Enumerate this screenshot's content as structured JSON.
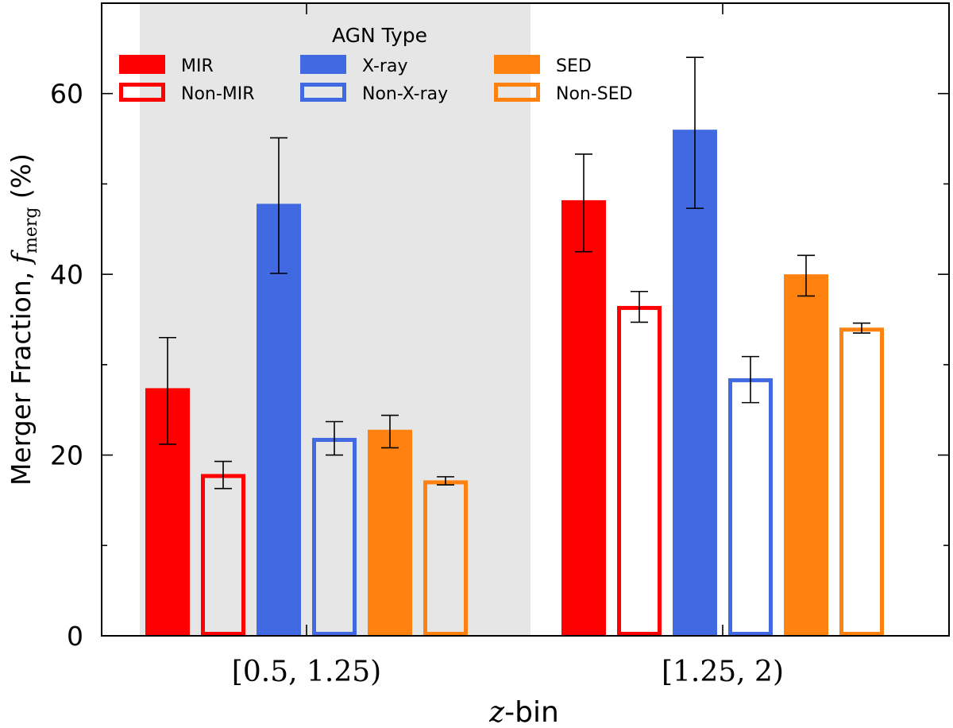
{
  "chart_data": {
    "type": "bar",
    "title": "",
    "xlabel_var": "z",
    "xlabel_suffix": "-bin",
    "ylabel_text": "Merger Fraction,",
    "ylabel_sym": "f",
    "ylabel_sub": "merg",
    "ylabel_unit": "(%)",
    "ylim": [
      0,
      70
    ],
    "yticks": [
      "0",
      "20",
      "40",
      "60"
    ],
    "categories": [
      "[0.5, 1.25)",
      "[1.25, 2)"
    ],
    "shaded_category": "[0.5, 1.25)",
    "legend": {
      "title": "AGN Type",
      "placement": "top"
    },
    "series": [
      {
        "name": "MIR",
        "style": "filled",
        "color": "#ff0000",
        "values": [
          27.4,
          48.2
        ],
        "err_low": [
          21.2,
          42.5
        ],
        "err_high": [
          33.0,
          53.3
        ]
      },
      {
        "name": "Non-MIR",
        "style": "hollow",
        "color": "#ff0000",
        "values": [
          17.9,
          36.5
        ],
        "err_low": [
          16.3,
          34.7
        ],
        "err_high": [
          19.3,
          38.1
        ]
      },
      {
        "name": "X-ray",
        "style": "filled",
        "color": "#4169e1",
        "values": [
          47.8,
          56.0
        ],
        "err_low": [
          40.1,
          47.3
        ],
        "err_high": [
          55.1,
          64.0
        ]
      },
      {
        "name": "Non-X-ray",
        "style": "hollow",
        "color": "#4169e1",
        "values": [
          21.9,
          28.5
        ],
        "err_low": [
          20.0,
          25.8
        ],
        "err_high": [
          23.7,
          30.9
        ]
      },
      {
        "name": "SED",
        "style": "filled",
        "color": "#ff8210",
        "values": [
          22.8,
          40.0
        ],
        "err_low": [
          20.8,
          37.6
        ],
        "err_high": [
          24.4,
          42.1
        ]
      },
      {
        "name": "Non-SED",
        "style": "hollow",
        "color": "#ff8210",
        "values": [
          17.2,
          34.1
        ],
        "err_low": [
          16.7,
          33.5
        ],
        "err_high": [
          17.6,
          34.6
        ]
      }
    ]
  }
}
